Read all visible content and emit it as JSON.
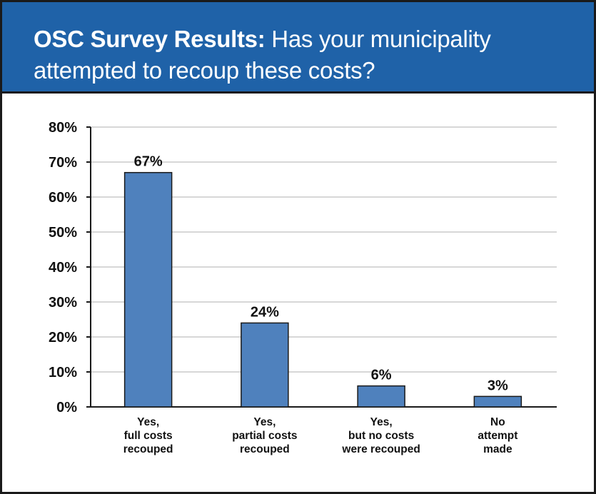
{
  "header": {
    "title_bold": "OSC Survey Results:",
    "title_rest": " Has your municipality attempted to recoup these costs?"
  },
  "chart_data": {
    "type": "bar",
    "categories": [
      [
        "Yes,",
        "full costs",
        "recouped"
      ],
      [
        "Yes,",
        "partial costs",
        "recouped"
      ],
      [
        "Yes,",
        "but no costs",
        "were recouped"
      ],
      [
        "No",
        "attempt",
        "made"
      ]
    ],
    "values": [
      67,
      24,
      6,
      3
    ],
    "data_labels": [
      "67%",
      "24%",
      "6%",
      "3%"
    ],
    "y_ticks": [
      "0%",
      "10%",
      "20%",
      "30%",
      "40%",
      "50%",
      "60%",
      "70%",
      "80%"
    ],
    "ylim": [
      0,
      80
    ],
    "grid": true,
    "bar_color": "#4f81bd"
  }
}
